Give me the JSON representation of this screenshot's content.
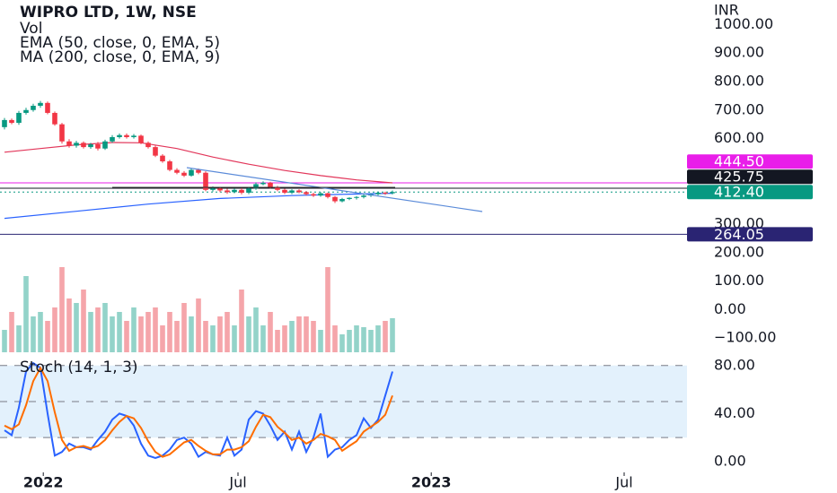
{
  "chart_data": [
    {
      "type": "candlestick",
      "title": "WIPRO LTD, 1W, NSE",
      "currency": "INR",
      "up_color": "#089981",
      "down_color": "#f23645",
      "open": [
        640,
        665,
        655,
        690,
        700,
        715,
        725,
        690,
        650,
        590,
        575,
        585,
        570,
        580,
        565,
        590,
        605,
        612,
        605,
        610,
        585,
        570,
        540,
        520,
        490,
        480,
        470,
        490,
        480,
        420,
        425,
        418,
        412,
        420,
        410,
        425,
        440,
        445,
        430,
        420,
        410,
        418,
        412,
        405,
        400,
        408,
        395,
        380,
        388,
        392,
        395,
        400,
        405,
        410,
        408
      ],
      "close": [
        665,
        655,
        690,
        700,
        715,
        725,
        690,
        650,
        590,
        575,
        585,
        570,
        580,
        565,
        590,
        605,
        612,
        605,
        610,
        585,
        570,
        540,
        520,
        490,
        480,
        470,
        490,
        480,
        420,
        425,
        418,
        412,
        420,
        410,
        425,
        440,
        445,
        430,
        420,
        410,
        418,
        412,
        405,
        400,
        408,
        395,
        380,
        388,
        392,
        395,
        400,
        405,
        410,
        408,
        412.4
      ],
      "high": [
        672,
        670,
        697,
        708,
        722,
        732,
        730,
        695,
        655,
        598,
        592,
        590,
        585,
        588,
        596,
        612,
        618,
        618,
        616,
        614,
        590,
        575,
        545,
        525,
        496,
        486,
        495,
        495,
        485,
        432,
        430,
        424,
        425,
        426,
        430,
        446,
        450,
        448,
        434,
        424,
        422,
        422,
        416,
        410,
        412,
        410,
        398,
        392,
        394,
        398,
        404,
        408,
        414,
        414,
        418
      ],
      "low": [
        632,
        650,
        648,
        684,
        694,
        708,
        685,
        645,
        582,
        568,
        568,
        565,
        564,
        558,
        560,
        585,
        600,
        600,
        600,
        580,
        565,
        535,
        515,
        485,
        475,
        465,
        466,
        475,
        415,
        414,
        412,
        406,
        408,
        404,
        405,
        420,
        436,
        425,
        415,
        405,
        405,
        408,
        400,
        395,
        396,
        390,
        374,
        376,
        384,
        386,
        390,
        395,
        400,
        402,
        404
      ],
      "series": [
        {
          "name": "EMA (50, close, 0, EMA, 5)",
          "color": "#e2365a",
          "x": [
            0,
            5,
            10,
            15,
            19,
            24,
            29,
            34,
            39,
            44,
            49,
            54
          ],
          "values": [
            552,
            565,
            578,
            586,
            585,
            565,
            535,
            510,
            488,
            470,
            455,
            444.5
          ]
        },
        {
          "name": "MA (200, close, 0, EMA, 9)",
          "color": "#2962ff",
          "x": [
            0,
            10,
            20,
            30,
            40,
            48,
            54
          ],
          "values": [
            320,
            345,
            370,
            390,
            400,
            405,
            408
          ]
        }
      ],
      "price_lines": [
        {
          "value": 444.5,
          "label": "444.50",
          "color": "#e91ee9",
          "style": "solid"
        },
        {
          "value": 425.75,
          "label": "425.75",
          "color": "#131722",
          "style": "solid"
        },
        {
          "value": 412.4,
          "label": "412.40",
          "color": "#089981",
          "style": "dotted"
        },
        {
          "value": 264.05,
          "label": "264.05",
          "color": "#2a2473",
          "style": "solid"
        }
      ],
      "ylim": [
        -156,
        1086
      ],
      "yticks": [
        {
          "value": 1000,
          "label": "1000.00"
        },
        {
          "value": 900,
          "label": "900.00"
        },
        {
          "value": 800,
          "label": "800.00"
        },
        {
          "value": 700,
          "label": "700.00"
        },
        {
          "value": 600,
          "label": "600.00"
        },
        {
          "value": 300,
          "label": "300.00"
        },
        {
          "value": 200,
          "label": "200.00"
        },
        {
          "value": 100,
          "label": "100.00"
        },
        {
          "value": 0,
          "label": "0.00"
        },
        {
          "value": -100,
          "label": "−100.00"
        }
      ]
    },
    {
      "type": "bar",
      "title": "Vol",
      "up_color": "#93d3c9",
      "down_color": "#f5a5aa",
      "ylim": [
        0,
        100
      ],
      "values": [
        25,
        45,
        30,
        85,
        40,
        45,
        35,
        50,
        95,
        60,
        55,
        70,
        45,
        50,
        55,
        40,
        45,
        35,
        50,
        40,
        45,
        50,
        30,
        45,
        35,
        55,
        40,
        60,
        35,
        30,
        40,
        45,
        30,
        70,
        40,
        50,
        30,
        45,
        25,
        30,
        35,
        40,
        40,
        35,
        25,
        95,
        30,
        20,
        25,
        30,
        28,
        25,
        30,
        35,
        38
      ]
    },
    {
      "type": "line",
      "title": "Stoch (14, 1, 3)",
      "series": [
        {
          "color": "#2962ff",
          "values": [
            26,
            22,
            45,
            75,
            82,
            78,
            40,
            5,
            8,
            15,
            12,
            12,
            10,
            18,
            25,
            35,
            40,
            38,
            30,
            15,
            5,
            3,
            5,
            10,
            18,
            20,
            15,
            4,
            8,
            6,
            5,
            20,
            5,
            10,
            35,
            42,
            40,
            30,
            18,
            25,
            10,
            25,
            8,
            20,
            40,
            4,
            10,
            12,
            18,
            22,
            36,
            28,
            35,
            55,
            75
          ]
        },
        {
          "color": "#ff6d00",
          "values": [
            30,
            27,
            31,
            47,
            67,
            78,
            67,
            41,
            18,
            9,
            12,
            13,
            11,
            13,
            18,
            26,
            33,
            38,
            36,
            28,
            17,
            8,
            4,
            6,
            11,
            16,
            18,
            13,
            9,
            6,
            6,
            10,
            10,
            12,
            17,
            29,
            39,
            37,
            29,
            24,
            18,
            20,
            15,
            18,
            23,
            21,
            18,
            9,
            13,
            17,
            25,
            29,
            33,
            39,
            55
          ]
        }
      ],
      "band": [
        20,
        80
      ],
      "midline": 50,
      "band_color": "#e3f1fc",
      "ylim": [
        -7.5,
        85.8
      ],
      "yticks": [
        {
          "value": 80,
          "label": "80.00"
        },
        {
          "value": 40,
          "label": "40.00"
        },
        {
          "value": 0,
          "label": "0.00"
        }
      ],
      "xlim": [
        -0.625,
        95
      ],
      "xticks": [
        {
          "value": 5.4,
          "label": "2022"
        },
        {
          "value": 32.5,
          "label": "Jul"
        },
        {
          "value": 59.4,
          "label": "2023"
        },
        {
          "value": 86.25,
          "label": "Jul"
        }
      ]
    }
  ]
}
